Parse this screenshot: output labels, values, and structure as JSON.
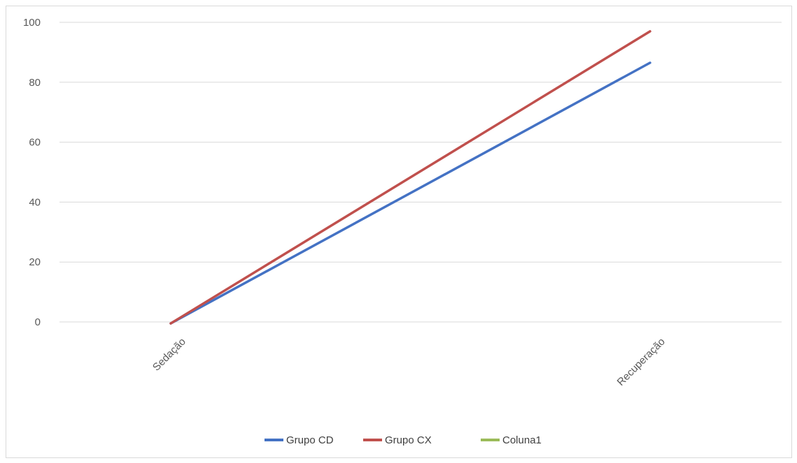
{
  "chart_data": {
    "type": "line",
    "categories": [
      "Sedação",
      "Recuperação"
    ],
    "ylim": [
      0,
      100
    ],
    "yticks": [
      0,
      20,
      40,
      60,
      80,
      100
    ],
    "grid": true,
    "legend_position": "bottom",
    "series": [
      {
        "name": "Grupo CD",
        "color": "#4472c4",
        "values": [
          -0.5,
          86.5
        ]
      },
      {
        "name": "Grupo CX",
        "color": "#c0504d",
        "values": [
          -0.5,
          97
        ]
      },
      {
        "name": "Coluna1",
        "color": "#9bbb59",
        "values": [
          null,
          null
        ]
      }
    ]
  }
}
